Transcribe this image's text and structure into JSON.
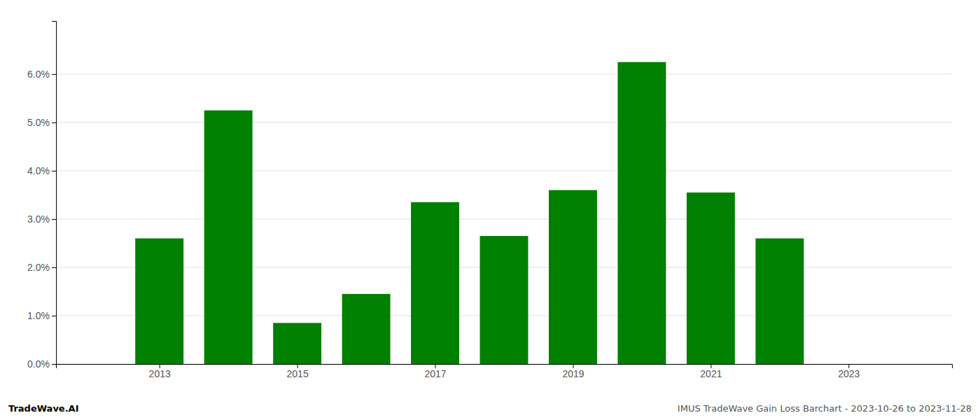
{
  "chart_data": {
    "type": "bar",
    "x": [
      2013,
      2014,
      2015,
      2016,
      2017,
      2018,
      2019,
      2020,
      2021,
      2022
    ],
    "values": [
      0.026,
      0.0525,
      0.0085,
      0.0145,
      0.0335,
      0.0265,
      0.036,
      0.0625,
      0.0355,
      0.026
    ],
    "color": "#008000",
    "xlim": [
      2011.5,
      2024.5
    ],
    "ylim": [
      0,
      0.071
    ],
    "xticks": [
      2013,
      2015,
      2017,
      2019,
      2021,
      2023
    ],
    "yticks": [
      {
        "value": 0.0,
        "label": "0.0%"
      },
      {
        "value": 0.01,
        "label": "1.0%"
      },
      {
        "value": 0.02,
        "label": "2.0%"
      },
      {
        "value": 0.03,
        "label": "3.0%"
      },
      {
        "value": 0.04,
        "label": "4.0%"
      },
      {
        "value": 0.05,
        "label": "5.0%"
      },
      {
        "value": 0.06,
        "label": "6.0%"
      }
    ],
    "grid": true,
    "annotations": [
      "TradeWave.AI",
      "IMUS TradeWave Gain Loss Barchart - 2023-10-26 to 2023-11-28"
    ]
  }
}
